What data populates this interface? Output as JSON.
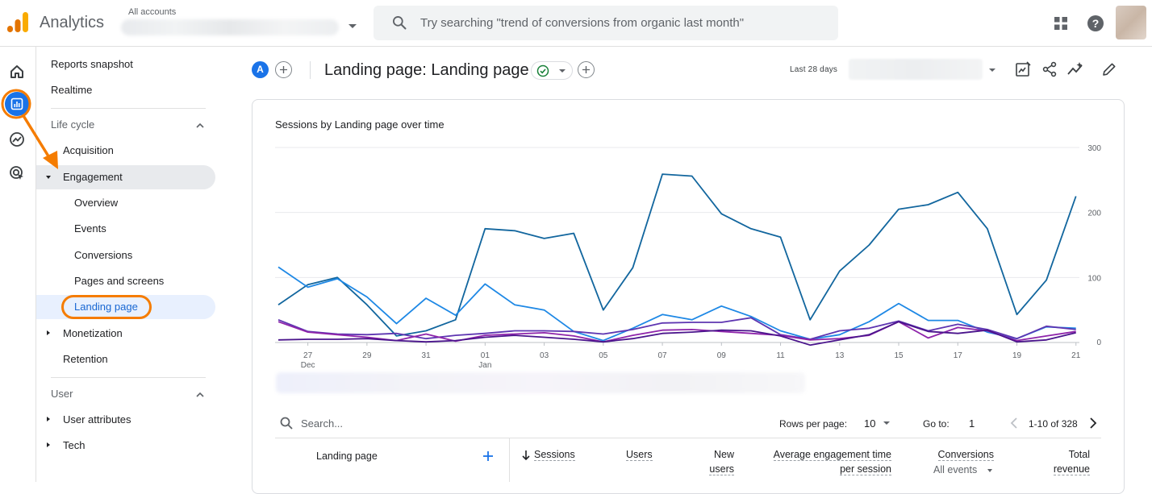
{
  "app": {
    "name": "Analytics",
    "account_label": "All accounts",
    "search_placeholder": "Try searching \"trend of conversions from organic last month\""
  },
  "nav": {
    "reports_snapshot": "Reports snapshot",
    "realtime": "Realtime",
    "lifecycle": "Life cycle",
    "acquisition": "Acquisition",
    "engagement": "Engagement",
    "overview": "Overview",
    "events": "Events",
    "conversions": "Conversions",
    "pages_and_screens": "Pages and screens",
    "landing_page": "Landing page",
    "monetization": "Monetization",
    "retention": "Retention",
    "user": "User",
    "user_attributes": "User attributes",
    "tech": "Tech"
  },
  "header": {
    "segment_letter": "A",
    "title": "Landing page: Landing page",
    "date_label": "Last 28 days"
  },
  "chart_data": {
    "type": "line",
    "title": "Sessions by Landing page over time",
    "ylim": [
      0,
      300
    ],
    "yticks": [
      "300",
      "200",
      "100",
      "0"
    ],
    "xticks": [
      "27",
      "29",
      "31",
      "01",
      "03",
      "05",
      "07",
      "09",
      "11",
      "13",
      "15",
      "17",
      "19",
      "21"
    ],
    "xtick_sublabels": [
      "Dec",
      "",
      "",
      "Jan",
      "",
      "",
      "",
      "",
      "",
      "",
      "",
      "",
      "",
      ""
    ],
    "x_count": 28,
    "series": [
      {
        "color": "#12669e",
        "values": [
          58,
          89,
          100,
          58,
          10,
          18,
          35,
          175,
          172,
          160,
          168,
          50,
          115,
          259,
          256,
          198,
          175,
          162,
          35,
          110,
          150,
          205,
          212,
          231,
          175,
          43,
          96,
          225
        ]
      },
      {
        "color": "#1e88e5",
        "values": [
          116,
          85,
          98,
          70,
          29,
          68,
          42,
          90,
          58,
          50,
          17,
          3,
          22,
          43,
          35,
          56,
          40,
          18,
          5,
          12,
          32,
          60,
          34,
          34,
          16,
          6,
          24,
          22
        ]
      },
      {
        "color": "#5e35b1",
        "values": [
          35,
          17,
          13,
          12,
          14,
          6,
          11,
          14,
          18,
          18,
          17,
          13,
          20,
          30,
          31,
          31,
          38,
          12,
          5,
          18,
          22,
          33,
          18,
          28,
          20,
          6,
          25,
          20
        ]
      },
      {
        "color": "#8e24aa",
        "values": [
          32,
          16,
          12,
          8,
          3,
          13,
          2,
          11,
          13,
          15,
          10,
          1,
          11,
          19,
          20,
          17,
          14,
          11,
          4,
          6,
          11,
          32,
          7,
          23,
          18,
          3,
          10,
          17
        ]
      },
      {
        "color": "#4a148c",
        "values": [
          4,
          5,
          5,
          6,
          3,
          1,
          3,
          8,
          11,
          8,
          5,
          1,
          6,
          14,
          16,
          19,
          18,
          10,
          -4,
          4,
          12,
          32,
          17,
          14,
          19,
          1,
          4,
          15
        ]
      }
    ]
  },
  "table": {
    "search_placeholder": "Search...",
    "rows_per_page_label": "Rows per page:",
    "rows_per_page": "10",
    "goto_label": "Go to:",
    "goto_value": "1",
    "page_range": "1-10 of 328",
    "col_dimension": "Landing page",
    "col_sessions": "Sessions",
    "col_users": "Users",
    "col_new_users_1": "New",
    "col_new_users_2": "users",
    "col_avg_eng_1": "Average engagement time",
    "col_avg_eng_2": "per session",
    "col_conversions": "Conversions",
    "col_conversions_sub": "All events",
    "col_revenue_1": "Total",
    "col_revenue_2": "revenue"
  }
}
